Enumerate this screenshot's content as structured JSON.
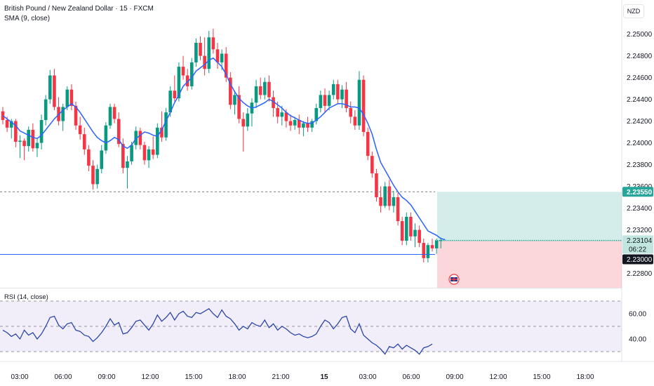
{
  "header": {
    "title": "British Pound / New Zealand Dollar · 15 · FXCM",
    "sma_label": "SMA (9, close)",
    "rsi_label": "RSI (14, close)",
    "currency": "NZD"
  },
  "price_axis": {
    "ticks": [
      "2.25000",
      "2.24800",
      "2.24600",
      "2.24400",
      "2.24200",
      "2.24000",
      "2.23800",
      "2.23600",
      "2.23400",
      "2.23200",
      "2.22800"
    ],
    "target_tag": "2.23550",
    "current_tag": "2.23104",
    "countdown_tag": "06:22",
    "stop_tag": "2.23000"
  },
  "rsi_axis": {
    "ticks": [
      "60.00",
      "40.00"
    ]
  },
  "time_axis": {
    "labels": [
      "03:00",
      "06:00",
      "09:00",
      "12:00",
      "15:00",
      "18:00",
      "21:00",
      "15",
      "03:00",
      "06:00",
      "09:00",
      "12:00",
      "15:00",
      "18:00"
    ]
  },
  "colors": {
    "up": "#089981",
    "down": "#f23645",
    "sma": "#2962ff",
    "rsi": "#2947a8",
    "rsi_band": "#7e57c2",
    "target_zone": "#26a69a",
    "stop_zone": "#f23645",
    "grid": "#f0f3fa"
  },
  "chart_data": [
    {
      "type": "candlestick",
      "title": "British Pound / New Zealand Dollar · 15 · FXCM",
      "interval_minutes": 15,
      "ylim": [
        2.227,
        2.2512
      ],
      "series": [
        {
          "name": "SMA (9, close)",
          "values": [
            2.2425,
            2.2422,
            2.2419,
            2.2416,
            2.2411,
            2.2409,
            2.2407,
            2.2405,
            2.2404,
            2.2407,
            2.2412,
            2.2417,
            2.2422,
            2.2426,
            2.243,
            2.2433,
            2.2436,
            2.2433,
            2.2428,
            2.2422,
            2.2416,
            2.241,
            2.2405,
            2.2402,
            2.24,
            2.2402,
            2.2405,
            2.2403,
            2.2397,
            2.2395,
            2.2398,
            2.2404,
            2.2407,
            2.241,
            2.2409,
            2.2407,
            2.2406,
            2.2412,
            2.242,
            2.2428,
            2.2437,
            2.2444,
            2.2452,
            2.2456,
            2.246,
            2.2466,
            2.2469,
            2.2472,
            2.2476,
            2.2478,
            2.2474,
            2.247,
            2.2463,
            2.2454,
            2.2447,
            2.2441,
            2.2437,
            2.2434,
            2.2432,
            2.2433,
            2.2435,
            2.2437,
            2.244,
            2.2438,
            2.2435,
            2.2432,
            2.2428,
            2.2425,
            2.2423,
            2.2421,
            2.2419,
            2.2418,
            2.2418,
            2.2421,
            2.2424,
            2.2428,
            2.2432,
            2.2434,
            2.2436,
            2.2436,
            2.2435,
            2.2433,
            2.2433,
            2.2432,
            2.2426,
            2.2418,
            2.2408,
            2.2394,
            2.2382,
            2.2375,
            2.2368,
            2.2361,
            2.2355,
            2.235,
            2.2347,
            2.2343,
            2.2337,
            2.2331,
            2.2325,
            2.2319,
            2.2317,
            2.2315,
            2.2312,
            2.2311
          ]
        },
        {
          "name": "RSI (14, close)",
          "values": [
            47,
            45,
            42,
            44,
            40,
            47,
            43,
            45,
            40,
            44,
            50,
            57,
            58,
            51,
            48,
            52,
            53,
            47,
            46,
            43,
            42,
            38,
            41,
            45,
            50,
            56,
            51,
            53,
            44,
            45,
            49,
            54,
            55,
            51,
            47,
            52,
            59,
            54,
            57,
            61,
            55,
            60,
            62,
            58,
            57,
            61,
            60,
            62,
            64,
            60,
            57,
            63,
            58,
            56,
            52,
            47,
            50,
            48,
            53,
            51,
            50,
            55,
            49,
            52,
            47,
            50,
            48,
            45,
            43,
            44,
            42,
            41,
            42,
            44,
            50,
            55,
            53,
            48,
            52,
            57,
            58,
            48,
            45,
            52,
            43,
            40,
            37,
            35,
            32,
            28,
            34,
            33,
            36,
            32,
            35,
            33,
            31,
            28,
            33,
            34,
            36
          ]
        }
      ],
      "position": {
        "target": 2.2355,
        "entry": 2.231,
        "stop": 2.23,
        "current": 2.23104
      },
      "ohlc": [
        [
          2.2429,
          2.2433,
          2.2417,
          2.2421
        ],
        [
          2.2421,
          2.2424,
          2.241,
          2.2414
        ],
        [
          2.2414,
          2.2422,
          2.2404,
          2.242
        ],
        [
          2.242,
          2.2422,
          2.2396,
          2.2401
        ],
        [
          2.2401,
          2.2407,
          2.2386,
          2.2402
        ],
        [
          2.2402,
          2.2404,
          2.2384,
          2.2397
        ],
        [
          2.2397,
          2.2415,
          2.2392,
          2.2412
        ],
        [
          2.2412,
          2.2418,
          2.2392,
          2.2395
        ],
        [
          2.2395,
          2.2404,
          2.2387,
          2.24
        ],
        [
          2.24,
          2.2426,
          2.2394,
          2.2421
        ],
        [
          2.2421,
          2.2444,
          2.2416,
          2.244
        ],
        [
          2.244,
          2.2467,
          2.2436,
          2.2462
        ],
        [
          2.2462,
          2.2468,
          2.243,
          2.2433
        ],
        [
          2.2433,
          2.2442,
          2.2416,
          2.242
        ],
        [
          2.242,
          2.2436,
          2.2411,
          2.2433
        ],
        [
          2.2433,
          2.2452,
          2.243,
          2.2449
        ],
        [
          2.2449,
          2.2454,
          2.243,
          2.2434
        ],
        [
          2.2434,
          2.2438,
          2.2412,
          2.2416
        ],
        [
          2.2416,
          2.2424,
          2.2403,
          2.2408
        ],
        [
          2.2408,
          2.2414,
          2.2389,
          2.2394
        ],
        [
          2.2394,
          2.2398,
          2.2374,
          2.2379
        ],
        [
          2.2379,
          2.2384,
          2.2357,
          2.2362
        ],
        [
          2.2362,
          2.238,
          2.2358,
          2.2376
        ],
        [
          2.2376,
          2.2398,
          2.2372,
          2.2393
        ],
        [
          2.2393,
          2.2419,
          2.239,
          2.2416
        ],
        [
          2.2416,
          2.2436,
          2.2413,
          2.2433
        ],
        [
          2.2433,
          2.2436,
          2.2418,
          2.2422
        ],
        [
          2.2422,
          2.2428,
          2.2396,
          2.2399
        ],
        [
          2.2399,
          2.2404,
          2.2372,
          2.2377
        ],
        [
          2.2377,
          2.2388,
          2.2358,
          2.2383
        ],
        [
          2.2383,
          2.2401,
          2.238,
          2.2398
        ],
        [
          2.2398,
          2.2415,
          2.2394,
          2.2411
        ],
        [
          2.2411,
          2.2414,
          2.2394,
          2.2398
        ],
        [
          2.2398,
          2.2401,
          2.238,
          2.2384
        ],
        [
          2.2384,
          2.2397,
          2.2377,
          2.2394
        ],
        [
          2.2394,
          2.2406,
          2.2385,
          2.2389
        ],
        [
          2.2389,
          2.2418,
          2.2386,
          2.2414
        ],
        [
          2.2414,
          2.2429,
          2.2401,
          2.2405
        ],
        [
          2.2405,
          2.2432,
          2.2402,
          2.2428
        ],
        [
          2.2428,
          2.2452,
          2.2424,
          2.2448
        ],
        [
          2.2448,
          2.2462,
          2.2438,
          2.2441
        ],
        [
          2.2441,
          2.2474,
          2.2438,
          2.247
        ],
        [
          2.247,
          2.248,
          2.2458,
          2.2462
        ],
        [
          2.2462,
          2.2468,
          2.2448,
          2.2452
        ],
        [
          2.2452,
          2.2478,
          2.2449,
          2.2474
        ],
        [
          2.2474,
          2.2496,
          2.247,
          2.2492
        ],
        [
          2.2492,
          2.2498,
          2.2476,
          2.248
        ],
        [
          2.248,
          2.2497,
          2.2462,
          2.2468
        ],
        [
          2.2468,
          2.2503,
          2.2464,
          2.2497
        ],
        [
          2.2497,
          2.2505,
          2.2482,
          2.2486
        ],
        [
          2.2486,
          2.2492,
          2.2468,
          2.2474
        ],
        [
          2.2474,
          2.2486,
          2.2467,
          2.2482
        ],
        [
          2.2482,
          2.2488,
          2.2456,
          2.246
        ],
        [
          2.246,
          2.2465,
          2.2431,
          2.2435
        ],
        [
          2.2435,
          2.2448,
          2.2426,
          2.2444
        ],
        [
          2.2444,
          2.2452,
          2.2418,
          2.2422
        ],
        [
          2.2422,
          2.2428,
          2.2392,
          2.2415
        ],
        [
          2.2415,
          2.2432,
          2.2411,
          2.2427
        ],
        [
          2.2427,
          2.2441,
          2.2415,
          2.2437
        ],
        [
          2.2437,
          2.2458,
          2.2432,
          2.2452
        ],
        [
          2.2452,
          2.246,
          2.244,
          2.2444
        ],
        [
          2.2444,
          2.246,
          2.244,
          2.2456
        ],
        [
          2.2456,
          2.2462,
          2.2438,
          2.2442
        ],
        [
          2.2442,
          2.2448,
          2.2424,
          2.2432
        ],
        [
          2.2432,
          2.2438,
          2.2418,
          2.2424
        ],
        [
          2.2424,
          2.2434,
          2.2416,
          2.2428
        ],
        [
          2.2428,
          2.2431,
          2.2414,
          2.242
        ],
        [
          2.242,
          2.2426,
          2.2411,
          2.2416
        ],
        [
          2.2416,
          2.2424,
          2.2412,
          2.2421
        ],
        [
          2.2421,
          2.2426,
          2.2408,
          2.2414
        ],
        [
          2.2414,
          2.242,
          2.2406,
          2.2418
        ],
        [
          2.2418,
          2.2424,
          2.241,
          2.2414
        ],
        [
          2.2414,
          2.2422,
          2.241,
          2.242
        ],
        [
          2.242,
          2.2436,
          2.2417,
          2.2432
        ],
        [
          2.2432,
          2.2448,
          2.2428,
          2.2444
        ],
        [
          2.2444,
          2.245,
          2.2428,
          2.2434
        ],
        [
          2.2434,
          2.2448,
          2.243,
          2.2444
        ],
        [
          2.2444,
          2.2458,
          2.244,
          2.2454
        ],
        [
          2.2454,
          2.2458,
          2.2436,
          2.244
        ],
        [
          2.244,
          2.2453,
          2.2432,
          2.2449
        ],
        [
          2.2449,
          2.2456,
          2.2428,
          2.2432
        ],
        [
          2.2432,
          2.2438,
          2.2418,
          2.2424
        ],
        [
          2.2424,
          2.243,
          2.2412,
          2.2416
        ],
        [
          2.2416,
          2.2466,
          2.2412,
          2.2458
        ],
        [
          2.2458,
          2.2462,
          2.2406,
          2.241
        ],
        [
          2.241,
          2.2414,
          2.2384,
          2.2388
        ],
        [
          2.2388,
          2.2392,
          2.2368,
          2.2372
        ],
        [
          2.2372,
          2.2376,
          2.2346,
          2.235
        ],
        [
          2.235,
          2.236,
          2.2336,
          2.2342
        ],
        [
          2.2342,
          2.2364,
          2.234,
          2.236
        ],
        [
          2.236,
          2.2366,
          2.2338,
          2.2342
        ],
        [
          2.2342,
          2.2356,
          2.2336,
          2.235
        ],
        [
          2.235,
          2.2354,
          2.2324,
          2.2328
        ],
        [
          2.2328,
          2.2332,
          2.2306,
          2.231
        ],
        [
          2.231,
          2.2336,
          2.2306,
          2.2332
        ],
        [
          2.2332,
          2.2336,
          2.231,
          2.2314
        ],
        [
          2.2314,
          2.2326,
          2.2304,
          2.232
        ],
        [
          2.232,
          2.2324,
          2.2304,
          2.2308
        ],
        [
          2.2308,
          2.2312,
          2.229,
          2.2294
        ],
        [
          2.2294,
          2.2308,
          2.229,
          2.2306
        ],
        [
          2.2306,
          2.2312,
          2.23,
          2.2303
        ],
        [
          2.2303,
          2.2312,
          2.2298,
          2.231
        ],
        [
          2.231,
          2.2313,
          2.2303,
          2.23104
        ]
      ]
    }
  ]
}
